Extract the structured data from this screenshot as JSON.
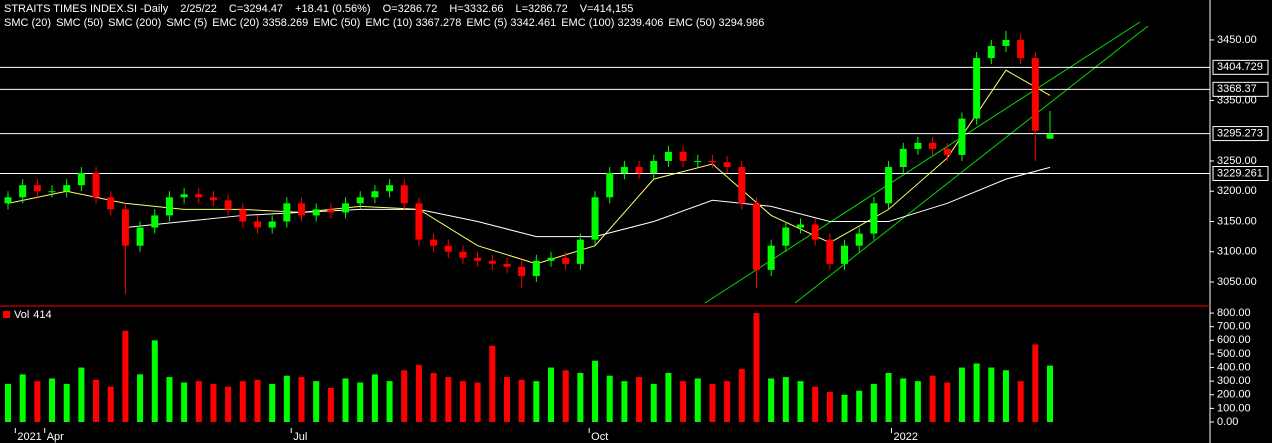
{
  "chart_data": {
    "type": "candlestick",
    "header": [
      {
        "text": "STRAITS TIMES INDEX.SI -Daily",
        "color": "#ffffff"
      },
      {
        "text": "2/25/22",
        "color": "#ffffff"
      },
      {
        "text": "C=3294.47",
        "color": "#00ff00"
      },
      {
        "text": "+18.41 (0.56%)",
        "color": "#00ff00"
      },
      {
        "text": "O=3286.72",
        "color": "#ffffff"
      },
      {
        "text": "H=3332.66",
        "color": "#ffffff"
      },
      {
        "text": "L=3286.72",
        "color": "#ffffff"
      },
      {
        "text": "V=414,155",
        "color": "#ffffff"
      }
    ],
    "indicators": [
      {
        "text": "SMC (20)",
        "color": "#aaaaaa"
      },
      {
        "text": "SMC (50)",
        "color": "#ff44ff"
      },
      {
        "text": "SMC (200)",
        "color": "#00aaaa"
      },
      {
        "text": "SMC (5)",
        "color": "#2222ff"
      },
      {
        "text": "EMC (20) 3358.269",
        "color": "#ffff66"
      },
      {
        "text": "EMC (50)",
        "color": "#ff66ff"
      },
      {
        "text": "EMC (10) 3367.278",
        "color": "#3344ff"
      },
      {
        "text": "EMC (5) 3342.461",
        "color": "#ff2222"
      },
      {
        "text": "EMC (100) 3239.406",
        "color": "#ffffff"
      },
      {
        "text": "EMC (50) 3294.986",
        "color": "#ccddff"
      }
    ],
    "open": [
      3180,
      3190,
      3210,
      3200,
      3200,
      3210,
      3230,
      3190,
      3170,
      3110,
      3140,
      3160,
      3190,
      3195,
      3190,
      3185,
      3170,
      3150,
      3140,
      3150,
      3180,
      3160,
      3170,
      3165,
      3180,
      3190,
      3200,
      3210,
      3180,
      3120,
      3110,
      3100,
      3090,
      3085,
      3080,
      3075,
      3060,
      3085,
      3090,
      3080,
      3120,
      3190,
      3230,
      3240,
      3230,
      3250,
      3265,
      3250,
      3250,
      3248,
      3240,
      3180,
      3070,
      3110,
      3140,
      3145,
      3120,
      3080,
      3110,
      3130,
      3180,
      3240,
      3270,
      3280,
      3270,
      3260,
      3320,
      3420,
      3440,
      3450,
      3420,
      3286.72
    ],
    "high": [
      3200,
      3220,
      3220,
      3210,
      3220,
      3240,
      3240,
      3200,
      3180,
      3150,
      3170,
      3200,
      3205,
      3205,
      3200,
      3195,
      3180,
      3160,
      3160,
      3190,
      3190,
      3180,
      3180,
      3190,
      3200,
      3210,
      3220,
      3220,
      3190,
      3130,
      3120,
      3110,
      3100,
      3095,
      3090,
      3085,
      3095,
      3100,
      3100,
      3130,
      3200,
      3240,
      3250,
      3250,
      3260,
      3275,
      3275,
      3260,
      3260,
      3258,
      3250,
      3190,
      3120,
      3150,
      3155,
      3155,
      3130,
      3120,
      3140,
      3190,
      3250,
      3280,
      3290,
      3290,
      3280,
      3330,
      3430,
      3450,
      3465,
      3460,
      3430,
      3332.66
    ],
    "low": [
      3170,
      3180,
      3190,
      3190,
      3190,
      3200,
      3180,
      3160,
      3030,
      3100,
      3130,
      3150,
      3180,
      3180,
      3175,
      3160,
      3140,
      3130,
      3130,
      3140,
      3150,
      3150,
      3155,
      3155,
      3170,
      3180,
      3190,
      3170,
      3110,
      3100,
      3090,
      3080,
      3075,
      3070,
      3065,
      3040,
      3050,
      3075,
      3070,
      3070,
      3110,
      3180,
      3220,
      3220,
      3220,
      3240,
      3240,
      3240,
      3238,
      3230,
      3170,
      3040,
      3060,
      3100,
      3130,
      3110,
      3070,
      3070,
      3100,
      3120,
      3170,
      3230,
      3260,
      3260,
      3250,
      3250,
      3310,
      3410,
      3430,
      3410,
      3250,
      3286.72
    ],
    "close": [
      3190,
      3210,
      3200,
      3200,
      3210,
      3230,
      3190,
      3170,
      3110,
      3140,
      3160,
      3190,
      3195,
      3190,
      3185,
      3170,
      3150,
      3140,
      3150,
      3180,
      3160,
      3170,
      3165,
      3180,
      3190,
      3200,
      3210,
      3180,
      3120,
      3110,
      3100,
      3090,
      3085,
      3080,
      3075,
      3060,
      3085,
      3090,
      3080,
      3120,
      3190,
      3230,
      3240,
      3230,
      3250,
      3265,
      3250,
      3250,
      3248,
      3240,
      3180,
      3070,
      3110,
      3140,
      3145,
      3120,
      3080,
      3110,
      3130,
      3180,
      3240,
      3270,
      3280,
      3270,
      3260,
      3320,
      3420,
      3440,
      3450,
      3420,
      3300,
      3294.47
    ],
    "up_color": "#00ff00",
    "down_color": "#ff0000",
    "lines": [
      {
        "color": "#ffff66",
        "x": [
          0,
          4,
          8,
          12,
          16,
          20,
          24,
          28,
          32,
          36,
          40,
          44,
          48,
          52,
          56,
          60,
          64,
          68,
          71
        ],
        "values": [
          3180,
          3200,
          3180,
          3170,
          3170,
          3165,
          3175,
          3170,
          3110,
          3080,
          3110,
          3220,
          3245,
          3160,
          3115,
          3170,
          3255,
          3400,
          3358.269
        ]
      },
      {
        "color": "#ffffff",
        "x": [
          8,
          12,
          16,
          20,
          24,
          28,
          32,
          36,
          40,
          44,
          48,
          52,
          56,
          60,
          64,
          68,
          71
        ],
        "values": [
          3140,
          3150,
          3160,
          3165,
          3170,
          3170,
          3150,
          3125,
          3125,
          3150,
          3185,
          3175,
          3150,
          3150,
          3180,
          3220,
          3239.406
        ]
      }
    ],
    "levels": [
      3404.729,
      3368.37,
      3295.273,
      3229.261
    ],
    "ylim": [
      3012,
      3516
    ],
    "yticks": [
      {
        "value": 3050,
        "label": "3050.00"
      },
      {
        "value": 3100,
        "label": "3100.00"
      },
      {
        "value": 3150,
        "label": "3150.00"
      },
      {
        "value": 3200,
        "label": "3200.00"
      },
      {
        "value": 3250,
        "label": "3250.00"
      },
      {
        "value": 3350,
        "label": "3350.00"
      },
      {
        "value": 3450,
        "label": "3450.00"
      }
    ],
    "xticks": [
      {
        "value": 0.5,
        "label": "2021"
      },
      {
        "value": 2.5,
        "label": "Apr"
      },
      {
        "value": 19.3,
        "label": "Jul"
      },
      {
        "value": 39.6,
        "label": "Oct"
      },
      {
        "value": 60.2,
        "label": "2022"
      }
    ],
    "volume_label": "Vol",
    "volume_last": "414",
    "volume_label_color": "#00ff00",
    "volume": [
      280,
      350,
      300,
      320,
      280,
      400,
      310,
      260,
      670,
      350,
      600,
      330,
      290,
      300,
      280,
      260,
      300,
      310,
      280,
      340,
      330,
      300,
      250,
      320,
      290,
      350,
      300,
      380,
      420,
      360,
      330,
      300,
      290,
      560,
      330,
      310,
      300,
      400,
      380,
      360,
      450,
      340,
      300,
      330,
      280,
      360,
      300,
      320,
      280,
      300,
      390,
      800,
      320,
      330,
      300,
      260,
      220,
      200,
      230,
      280,
      360,
      320,
      300,
      340,
      290,
      400,
      430,
      400,
      380,
      300,
      570,
      414
    ],
    "vlim": [
      0,
      830
    ],
    "vticks": [
      {
        "value": 0,
        "label": "0.00"
      },
      {
        "value": 100,
        "label": "100.00"
      },
      {
        "value": 200,
        "label": "200.00"
      },
      {
        "value": 300,
        "label": "300.00"
      },
      {
        "value": 400,
        "label": "400.00"
      },
      {
        "value": 500,
        "label": "500.00"
      },
      {
        "value": 600,
        "label": "600.00"
      },
      {
        "value": 700,
        "label": "700.00"
      },
      {
        "value": 800,
        "label": "800.00"
      }
    ]
  }
}
